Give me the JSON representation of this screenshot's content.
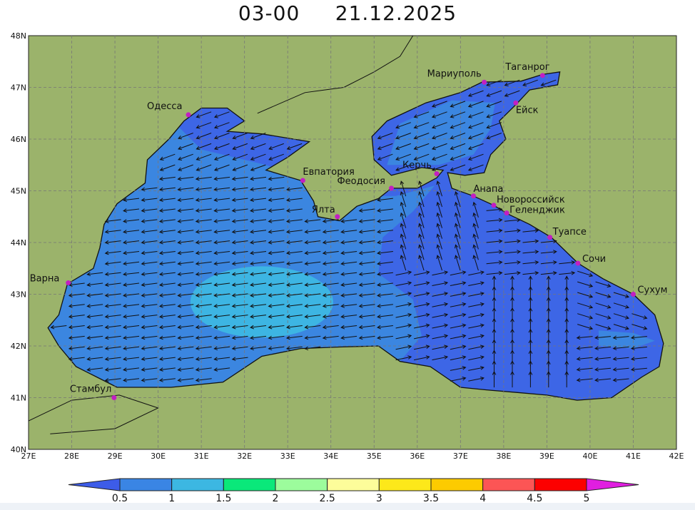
{
  "title": "03-00     21.12.2025",
  "map": {
    "lon_range": [
      27,
      42
    ],
    "lat_range": [
      40,
      48
    ],
    "lon_ticks": [
      "27E",
      "28E",
      "29E",
      "30E",
      "31E",
      "32E",
      "33E",
      "34E",
      "35E",
      "36E",
      "37E",
      "38E",
      "39E",
      "40E",
      "41E",
      "42E"
    ],
    "lat_ticks": [
      "40N",
      "41N",
      "42N",
      "43N",
      "44N",
      "45N",
      "46N",
      "47N",
      "48N"
    ],
    "grid": true,
    "colors": {
      "land": "#9bb36b",
      "below_0_5": "#3d66e6",
      "band_0_5_1": "#3b86e0",
      "band_1_1_5": "#3db5e3",
      "city": "#c21fc2",
      "coast": "#111111"
    },
    "cities": [
      {
        "name": "Одесса",
        "lon": 30.7,
        "lat": 46.47
      },
      {
        "name": "Евпатория",
        "lon": 33.35,
        "lat": 45.2
      },
      {
        "name": "Ялта",
        "lon": 34.15,
        "lat": 44.5
      },
      {
        "name": "Феодосия",
        "lon": 35.4,
        "lat": 45.05
      },
      {
        "name": "Керчь",
        "lon": 36.45,
        "lat": 45.33
      },
      {
        "name": "Мариуполь",
        "lon": 37.55,
        "lat": 47.1
      },
      {
        "name": "Таганрог",
        "lon": 38.9,
        "lat": 47.23
      },
      {
        "name": "Ейск",
        "lon": 38.28,
        "lat": 46.7
      },
      {
        "name": "Анапа",
        "lon": 37.3,
        "lat": 44.9
      },
      {
        "name": "Новороссийск",
        "lon": 37.77,
        "lat": 44.72
      },
      {
        "name": "Геленджик",
        "lon": 38.07,
        "lat": 44.57
      },
      {
        "name": "Туапсе",
        "lon": 39.07,
        "lat": 44.1
      },
      {
        "name": "Сочи",
        "lon": 39.72,
        "lat": 43.6
      },
      {
        "name": "Сухум",
        "lon": 41.0,
        "lat": 43.0
      },
      {
        "name": "Варна",
        "lon": 27.92,
        "lat": 43.22
      },
      {
        "name": "Стамбул",
        "lon": 28.98,
        "lat": 41.0
      }
    ]
  },
  "legend": {
    "labels": [
      "0.5",
      "1",
      "1.5",
      "2",
      "2.5",
      "3",
      "3.5",
      "4",
      "4.5",
      "5"
    ],
    "colors": [
      "#3a85e4",
      "#3cb7e2",
      "#0ae87a",
      "#9cfc9c",
      "#fdfd9a",
      "#fde81a",
      "#fdcb00",
      "#fc5555",
      "#fc0000"
    ],
    "low_color": "#3d5ce8",
    "high_color": "#e01ee0"
  }
}
